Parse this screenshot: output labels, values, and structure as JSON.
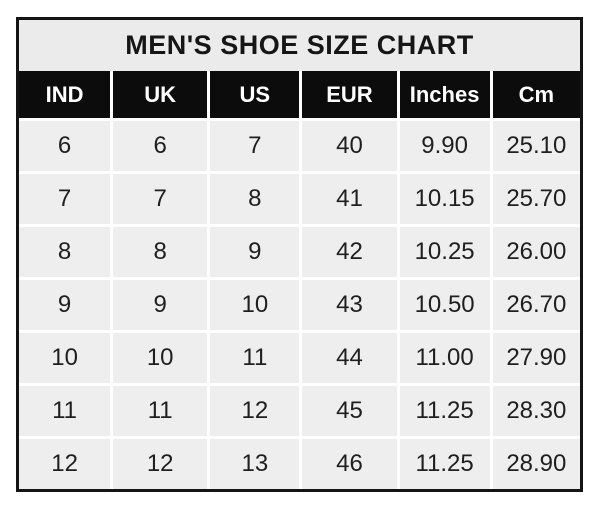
{
  "title": "MEN'S SHOE SIZE CHART",
  "table": {
    "headers": [
      "IND",
      "UK",
      "US",
      "EUR",
      "Inches",
      "Cm"
    ],
    "rows": [
      [
        "6",
        "6",
        "7",
        "40",
        "9.90",
        "25.10"
      ],
      [
        "7",
        "7",
        "8",
        "41",
        "10.15",
        "25.70"
      ],
      [
        "8",
        "8",
        "9",
        "42",
        "10.25",
        "26.00"
      ],
      [
        "9",
        "9",
        "10",
        "43",
        "10.50",
        "26.70"
      ],
      [
        "10",
        "10",
        "11",
        "44",
        "11.00",
        "27.90"
      ],
      [
        "11",
        "11",
        "12",
        "45",
        "11.25",
        "28.30"
      ],
      [
        "12",
        "12",
        "13",
        "46",
        "11.25",
        "28.90"
      ]
    ]
  },
  "colors": {
    "border": "#141414",
    "title_bg": "#ebebeb",
    "header_bg": "#0c0c0c",
    "header_text": "#ffffff",
    "cell_bg": "#eeeeee",
    "cell_text": "#1f1f1f",
    "gridline": "#ffffff"
  },
  "chart_data": {
    "type": "table",
    "title": "MEN'S SHOE SIZE CHART",
    "columns": [
      "IND",
      "UK",
      "US",
      "EUR",
      "Inches",
      "Cm"
    ],
    "rows": [
      [
        6,
        6,
        7,
        40,
        9.9,
        25.1
      ],
      [
        7,
        7,
        8,
        41,
        10.15,
        25.7
      ],
      [
        8,
        8,
        9,
        42,
        10.25,
        26.0
      ],
      [
        9,
        9,
        10,
        43,
        10.5,
        26.7
      ],
      [
        10,
        10,
        11,
        44,
        11.0,
        27.9
      ],
      [
        11,
        11,
        12,
        45,
        11.25,
        28.3
      ],
      [
        12,
        12,
        13,
        46,
        11.25,
        28.9
      ]
    ]
  }
}
